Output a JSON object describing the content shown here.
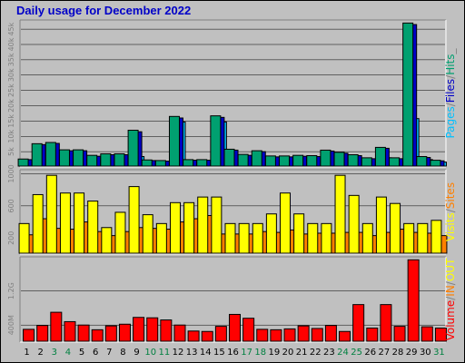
{
  "chart_data": [
    {
      "type": "bar",
      "title": "Daily usage for December 2022",
      "ylabel_parts": [
        "Pages",
        "/",
        "Files",
        "/",
        "Hits",
        "_"
      ],
      "ylabel_colors": [
        "#00c0ff",
        "#808080",
        "#0000c8",
        "#808080",
        "#00a070",
        "#808080"
      ],
      "ytick_labels": [
        "5k",
        "10k",
        "15k",
        "20k",
        "25k",
        "30k",
        "35k",
        "40k",
        "45k"
      ],
      "yticks": [
        5000,
        10000,
        15000,
        20000,
        25000,
        30000,
        35000,
        40000,
        45000
      ],
      "ylim": [
        0,
        48000
      ],
      "categories": [
        "1",
        "2",
        "3",
        "4",
        "5",
        "6",
        "7",
        "8",
        "9",
        "10",
        "11",
        "12",
        "13",
        "14",
        "15",
        "16",
        "17",
        "18",
        "19",
        "20",
        "21",
        "22",
        "23",
        "24",
        "25",
        "26",
        "27",
        "28",
        "29",
        "30",
        "31"
      ],
      "series": [
        {
          "name": "Hits",
          "color": "#00a070",
          "values": [
            2600,
            7600,
            8000,
            5600,
            5600,
            3800,
            4300,
            4300,
            12000,
            2300,
            2100,
            16500,
            2400,
            2400,
            16700,
            5800,
            4100,
            5300,
            3600,
            3600,
            3800,
            3700,
            5500,
            4800,
            4000,
            3000,
            6400,
            3000,
            47000,
            3400,
            2200
          ]
        },
        {
          "name": "Files",
          "color": "#0000c8",
          "values": [
            2400,
            7300,
            7700,
            5300,
            5300,
            3500,
            4000,
            4000,
            11500,
            2100,
            1900,
            16000,
            2200,
            2200,
            16200,
            5500,
            3800,
            5000,
            3300,
            3300,
            3500,
            3400,
            5200,
            4500,
            3700,
            2700,
            6100,
            2700,
            46500,
            3100,
            2000
          ]
        },
        {
          "name": "Pages",
          "color": "#00c0ff",
          "values": [
            1700,
            2400,
            3100,
            3100,
            2700,
            2600,
            2600,
            2500,
            3400,
            1600,
            1500,
            14700,
            1900,
            1700,
            14700,
            3000,
            2900,
            3100,
            2800,
            2800,
            2700,
            2800,
            3000,
            2900,
            2900,
            2100,
            3000,
            2100,
            15800,
            2400,
            1600
          ]
        }
      ]
    },
    {
      "type": "bar",
      "ylabel_parts": [
        "Visits",
        "/",
        "Sites"
      ],
      "ylabel_colors": [
        "#ffff00",
        "#808080",
        "#ff8000"
      ],
      "ytick_labels": [
        "200",
        "600",
        "1000"
      ],
      "yticks": [
        200,
        600,
        1000
      ],
      "ylim": [
        0,
        1050
      ],
      "categories": [
        "1",
        "2",
        "3",
        "4",
        "5",
        "6",
        "7",
        "8",
        "9",
        "10",
        "11",
        "12",
        "13",
        "14",
        "15",
        "16",
        "17",
        "18",
        "19",
        "20",
        "21",
        "22",
        "23",
        "24",
        "25",
        "26",
        "27",
        "28",
        "29",
        "30",
        "31"
      ],
      "series": [
        {
          "name": "Visits",
          "color": "#ffff00",
          "values": [
            380,
            740,
            980,
            760,
            760,
            660,
            330,
            520,
            840,
            490,
            380,
            640,
            640,
            710,
            710,
            380,
            380,
            380,
            500,
            760,
            500,
            380,
            380,
            980,
            730,
            380,
            710,
            630,
            380,
            380,
            420
          ]
        },
        {
          "name": "Sites",
          "color": "#ff8000",
          "values": [
            240,
            440,
            320,
            310,
            400,
            280,
            230,
            280,
            330,
            320,
            310,
            400,
            440,
            480,
            250,
            250,
            250,
            280,
            270,
            300,
            250,
            260,
            260,
            270,
            270,
            230,
            270,
            310,
            270,
            260,
            230
          ]
        }
      ]
    },
    {
      "type": "bar",
      "ylabel_parts": [
        "Volume",
        "/",
        "IN",
        "/",
        "OUT"
      ],
      "ylabel_colors": [
        "#ff0000",
        "#808080",
        "#ff8000",
        "#808080",
        "#ffff00"
      ],
      "ytick_labels": [
        "400M",
        "1.2G"
      ],
      "yticks": [
        400,
        1200
      ],
      "ylim": [
        0,
        2000
      ],
      "categories": [
        "1",
        "2",
        "3",
        "4",
        "5",
        "6",
        "7",
        "8",
        "9",
        "10",
        "11",
        "12",
        "13",
        "14",
        "15",
        "16",
        "17",
        "18",
        "19",
        "20",
        "21",
        "22",
        "23",
        "24",
        "25",
        "26",
        "27",
        "28",
        "29",
        "30",
        "31"
      ],
      "series": [
        {
          "name": "Volume",
          "color": "#ff0000",
          "values": [
            300,
            390,
            700,
            480,
            400,
            290,
            380,
            420,
            580,
            570,
            520,
            400,
            260,
            250,
            370,
            650,
            560,
            300,
            290,
            310,
            380,
            320,
            390,
            250,
            880,
            330,
            880,
            370,
            1930,
            360,
            330
          ]
        }
      ]
    }
  ],
  "x_label_colors": [
    "#000000",
    "#000000",
    "#008040",
    "#008040",
    "#000000",
    "#000000",
    "#000000",
    "#000000",
    "#000000",
    "#008040",
    "#008040",
    "#000000",
    "#000000",
    "#000000",
    "#000000",
    "#000000",
    "#008040",
    "#008040",
    "#000000",
    "#000000",
    "#000000",
    "#000000",
    "#000000",
    "#008040",
    "#008040",
    "#000000",
    "#000000",
    "#000000",
    "#000000",
    "#000000",
    "#008040"
  ]
}
